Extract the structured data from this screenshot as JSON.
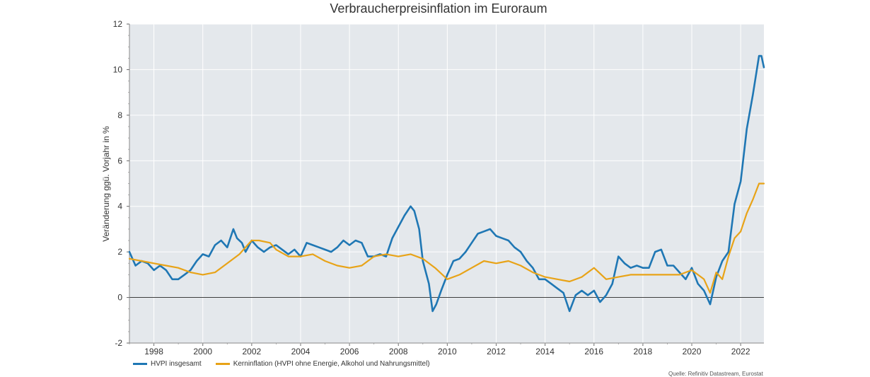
{
  "chart_data": {
    "type": "line",
    "title": "Verbraucherpreisinflation im Euroraum",
    "xlabel": "",
    "ylabel": "Veränderung ggü. Vorjahr in %",
    "xlim": [
      1997.0,
      2022.95
    ],
    "ylim": [
      -2,
      12
    ],
    "y_ticks": [
      "-2",
      "0",
      "2",
      "4",
      "6",
      "8",
      "10",
      "12"
    ],
    "x_ticks": [
      "1998",
      "2000",
      "2002",
      "2004",
      "2006",
      "2008",
      "2010",
      "2012",
      "2014",
      "2016",
      "2018",
      "2020",
      "2022"
    ],
    "grid": true,
    "legend_position": "bottom-left",
    "source": "Quelle: Refinitiv Datastream, Eurostat",
    "series": [
      {
        "name": "HVPI insgesamt",
        "color": "#1f77b4",
        "x": [
          1997.0,
          1997.25,
          1997.5,
          1997.75,
          1998.0,
          1998.25,
          1998.5,
          1998.75,
          1999.0,
          1999.25,
          1999.5,
          1999.75,
          2000.0,
          2000.25,
          2000.5,
          2000.75,
          2001.0,
          2001.25,
          2001.4,
          2001.6,
          2001.75,
          2002.0,
          2002.25,
          2002.5,
          2002.75,
          2003.0,
          2003.25,
          2003.5,
          2003.75,
          2004.0,
          2004.25,
          2004.5,
          2004.75,
          2005.0,
          2005.25,
          2005.5,
          2005.75,
          2006.0,
          2006.25,
          2006.5,
          2006.75,
          2007.0,
          2007.25,
          2007.5,
          2007.75,
          2008.0,
          2008.25,
          2008.5,
          2008.65,
          2008.85,
          2009.0,
          2009.25,
          2009.4,
          2009.55,
          2009.75,
          2010.0,
          2010.25,
          2010.5,
          2010.75,
          2011.0,
          2011.25,
          2011.5,
          2011.75,
          2012.0,
          2012.25,
          2012.5,
          2012.75,
          2013.0,
          2013.25,
          2013.5,
          2013.75,
          2014.0,
          2014.25,
          2014.5,
          2014.75,
          2015.0,
          2015.25,
          2015.5,
          2015.75,
          2016.0,
          2016.25,
          2016.5,
          2016.75,
          2017.0,
          2017.25,
          2017.5,
          2017.75,
          2018.0,
          2018.25,
          2018.5,
          2018.75,
          2019.0,
          2019.25,
          2019.5,
          2019.75,
          2020.0,
          2020.25,
          2020.5,
          2020.75,
          2021.0,
          2021.25,
          2021.5,
          2021.75,
          2022.0,
          2022.25,
          2022.5,
          2022.75,
          2022.85,
          2022.95
        ],
        "values": [
          2.0,
          1.4,
          1.6,
          1.5,
          1.2,
          1.4,
          1.2,
          0.8,
          0.8,
          1.0,
          1.2,
          1.6,
          1.9,
          1.8,
          2.3,
          2.5,
          2.2,
          3.0,
          2.6,
          2.4,
          2.0,
          2.5,
          2.2,
          2.0,
          2.2,
          2.3,
          2.1,
          1.9,
          2.1,
          1.8,
          2.4,
          2.3,
          2.2,
          2.1,
          2.0,
          2.2,
          2.5,
          2.3,
          2.5,
          2.4,
          1.8,
          1.8,
          1.9,
          1.8,
          2.6,
          3.1,
          3.6,
          4.0,
          3.8,
          3.0,
          1.6,
          0.6,
          -0.6,
          -0.3,
          0.3,
          1.0,
          1.6,
          1.7,
          2.0,
          2.4,
          2.8,
          2.9,
          3.0,
          2.7,
          2.6,
          2.5,
          2.2,
          2.0,
          1.6,
          1.3,
          0.8,
          0.8,
          0.6,
          0.4,
          0.2,
          -0.6,
          0.1,
          0.3,
          0.1,
          0.3,
          -0.2,
          0.1,
          0.6,
          1.8,
          1.5,
          1.3,
          1.4,
          1.3,
          1.3,
          2.0,
          2.1,
          1.4,
          1.4,
          1.1,
          0.8,
          1.3,
          0.6,
          0.3,
          -0.3,
          0.9,
          1.6,
          2.0,
          4.1,
          5.1,
          7.4,
          8.9,
          10.6,
          10.6,
          10.1
        ]
      },
      {
        "name": "Kerninflation (HVPI ohne Energie, Alkohol und Nahrungsmittel)",
        "color": "#e8a317",
        "x": [
          1997.0,
          1997.5,
          1998.0,
          1998.5,
          1999.0,
          1999.5,
          2000.0,
          2000.5,
          2001.0,
          2001.5,
          2002.0,
          2002.3,
          2002.75,
          2003.0,
          2003.5,
          2004.0,
          2004.5,
          2005.0,
          2005.5,
          2006.0,
          2006.5,
          2007.0,
          2007.5,
          2008.0,
          2008.5,
          2009.0,
          2009.5,
          2010.0,
          2010.5,
          2011.0,
          2011.5,
          2012.0,
          2012.5,
          2013.0,
          2013.5,
          2014.0,
          2014.5,
          2015.0,
          2015.5,
          2016.0,
          2016.5,
          2017.0,
          2017.5,
          2018.0,
          2018.5,
          2019.0,
          2019.5,
          2020.0,
          2020.5,
          2020.75,
          2021.0,
          2021.25,
          2021.5,
          2021.75,
          2022.0,
          2022.25,
          2022.5,
          2022.75,
          2022.95
        ],
        "values": [
          1.7,
          1.6,
          1.5,
          1.4,
          1.3,
          1.1,
          1.0,
          1.1,
          1.5,
          1.9,
          2.5,
          2.5,
          2.4,
          2.1,
          1.8,
          1.8,
          1.9,
          1.6,
          1.4,
          1.3,
          1.4,
          1.8,
          1.9,
          1.8,
          1.9,
          1.7,
          1.3,
          0.8,
          1.0,
          1.3,
          1.6,
          1.5,
          1.6,
          1.4,
          1.1,
          0.9,
          0.8,
          0.7,
          0.9,
          1.3,
          0.8,
          0.9,
          1.0,
          1.0,
          1.0,
          1.0,
          1.0,
          1.2,
          0.8,
          0.2,
          1.1,
          0.8,
          1.8,
          2.6,
          2.9,
          3.7,
          4.3,
          5.0,
          5.0
        ]
      }
    ]
  }
}
